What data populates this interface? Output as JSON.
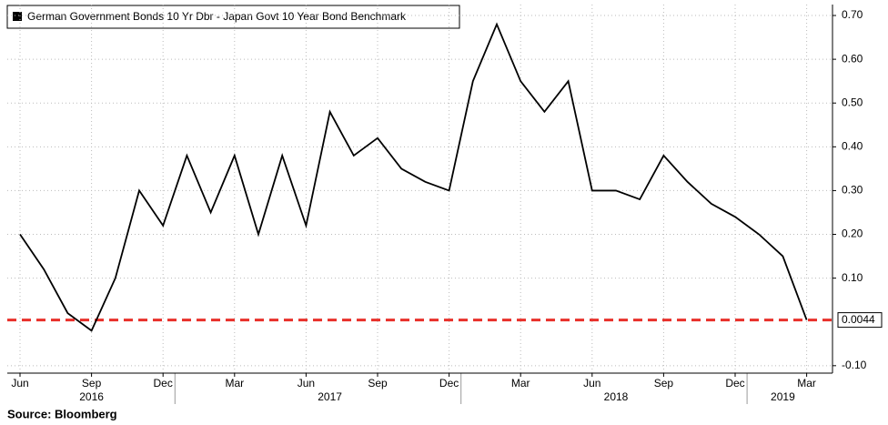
{
  "chart_data": {
    "type": "line",
    "legend": "German Government Bonds 10 Yr Dbr - Japan Govt 10 Year Bond Benchmark",
    "source": "Source:  Bloomberg",
    "x": [
      "2016-06",
      "2016-07",
      "2016-08",
      "2016-09",
      "2016-10",
      "2016-11",
      "2016-12",
      "2017-01",
      "2017-02",
      "2017-03",
      "2017-04",
      "2017-05",
      "2017-06",
      "2017-07",
      "2017-08",
      "2017-09",
      "2017-10",
      "2017-11",
      "2017-12",
      "2018-01",
      "2018-02",
      "2018-03",
      "2018-04",
      "2018-05",
      "2018-06",
      "2018-07",
      "2018-08",
      "2018-09",
      "2018-10",
      "2018-11",
      "2018-12",
      "2019-01",
      "2019-02",
      "2019-03"
    ],
    "series": [
      {
        "name": "German Government Bonds 10 Yr Dbr - Japan Govt 10 Year Bond Benchmark",
        "color": "#000000",
        "values": [
          0.2,
          0.12,
          0.02,
          -0.02,
          0.1,
          0.3,
          0.22,
          0.38,
          0.25,
          0.38,
          0.2,
          0.38,
          0.22,
          0.48,
          0.38,
          0.42,
          0.35,
          0.32,
          0.3,
          0.55,
          0.68,
          0.55,
          0.48,
          0.55,
          0.3,
          0.3,
          0.28,
          0.38,
          0.32,
          0.27,
          0.24,
          0.2,
          0.15,
          0.0044
        ]
      }
    ],
    "reference_line": {
      "value": 0.0044,
      "label": "0.0044",
      "color": "#e8302a"
    },
    "ylim": [
      -0.117,
      0.725
    ],
    "yticks": [
      {
        "value": -0.1,
        "label": "-0.10"
      },
      {
        "value": 0.1,
        "label": "0.10"
      },
      {
        "value": 0.2,
        "label": "0.20"
      },
      {
        "value": 0.3,
        "label": "0.30"
      },
      {
        "value": 0.4,
        "label": "0.40"
      },
      {
        "value": 0.5,
        "label": "0.50"
      },
      {
        "value": 0.6,
        "label": "0.60"
      },
      {
        "value": 0.7,
        "label": "0.70"
      }
    ],
    "xticks": [
      {
        "value": "2016-06",
        "label": "Jun"
      },
      {
        "value": "2016-09",
        "label": "Sep"
      },
      {
        "value": "2016-12",
        "label": "Dec"
      },
      {
        "value": "2017-03",
        "label": "Mar"
      },
      {
        "value": "2017-06",
        "label": "Jun"
      },
      {
        "value": "2017-09",
        "label": "Sep"
      },
      {
        "value": "2017-12",
        "label": "Dec"
      },
      {
        "value": "2018-03",
        "label": "Mar"
      },
      {
        "value": "2018-06",
        "label": "Jun"
      },
      {
        "value": "2018-09",
        "label": "Sep"
      },
      {
        "value": "2018-12",
        "label": "Dec"
      },
      {
        "value": "2019-03",
        "label": "Mar"
      }
    ],
    "year_labels": [
      {
        "value": "2016-09",
        "label": "2016"
      },
      {
        "value": "2017-07",
        "label": "2017"
      },
      {
        "value": "2018-07",
        "label": "2018"
      },
      {
        "value": "2019-02",
        "label": "2019"
      }
    ],
    "grid": true
  }
}
